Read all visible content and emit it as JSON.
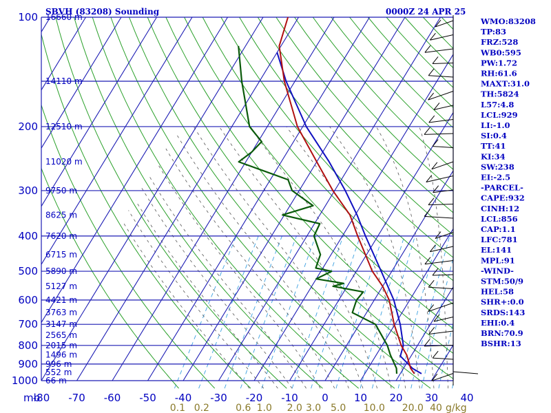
{
  "header": {
    "station": "SBVH (83208) Sounding",
    "time": "0000Z 24 APR 25"
  },
  "colors": {
    "grid": "#1c1cb4",
    "isotherm": "#1c1cb4",
    "dry_adiabat": "#2aa02a",
    "moist_adiabat": "#555555",
    "mixing_ratio": "#3aa0e0",
    "temperature": "#b01010",
    "dewpoint": "#0a5a0a",
    "parcel": "#1010c0",
    "wind": "#000000",
    "text": "#0000c0",
    "mixing_label": "#8a7a2a"
  },
  "indices": [
    "WMO:83208",
    "TP:83",
    "FRZ:528",
    "WB0:595",
    "PW:1.72",
    "RH:61.6",
    "MAXT:31.0",
    "TH:5824",
    "L57:4.8",
    "LCL:929",
    "LI:-1.0",
    "SI:0.4",
    "TT:41",
    "KI:34",
    "SW:238",
    "EI:-2.5",
    "-PARCEL-",
    "CAPE:932",
    "CINH:12",
    "LCL:856",
    "CAP:1.1",
    "LFC:781",
    "EL:141",
    "MPL:91",
    "-WIND-",
    "STM:50/9",
    "HEL:58",
    "SHR+:0.0",
    "SRDS:143",
    "EHI:0.4",
    "BRN:70.9",
    "BSHR:13"
  ],
  "chart_data": {
    "type": "skew-t",
    "title": "SBVH (83208) Sounding",
    "valid_time": "0000Z 24 APR 25",
    "y_axis": {
      "unit": "mb",
      "scale": "log",
      "range": [
        1000,
        100
      ],
      "ticks": [
        100,
        200,
        300,
        400,
        500,
        600,
        700,
        800,
        900,
        1000
      ],
      "minor_lines": [
        150
      ]
    },
    "x_axis": {
      "ticks": [
        -80,
        -70,
        -60,
        -50,
        -40,
        -30,
        -20,
        -10,
        0,
        10,
        20,
        30,
        40
      ],
      "tick_labels": [
        "-80",
        "-70",
        "-60",
        "-50",
        "-40",
        "-30",
        "-20",
        "-10",
        "0",
        "10",
        "20",
        "30",
        "40"
      ],
      "range": [
        -80,
        40
      ]
    },
    "height_labels": [
      {
        "p": 100,
        "label": "16660 m"
      },
      {
        "p": 150,
        "label": "14110 m"
      },
      {
        "p": 200,
        "label": "12510 m"
      },
      {
        "p": 250,
        "label": "11020 m"
      },
      {
        "p": 300,
        "label": "9750 m"
      },
      {
        "p": 350,
        "label": "8625 m"
      },
      {
        "p": 400,
        "label": "7620 m"
      },
      {
        "p": 450,
        "label": "6715 m"
      },
      {
        "p": 500,
        "label": "5890 m"
      },
      {
        "p": 550,
        "label": "5127 m"
      },
      {
        "p": 600,
        "label": "4421 m"
      },
      {
        "p": 650,
        "label": "3763 m"
      },
      {
        "p": 700,
        "label": "3147 m"
      },
      {
        "p": 750,
        "label": "2565 m"
      },
      {
        "p": 800,
        "label": "2015 m"
      },
      {
        "p": 850,
        "label": "1496 m"
      },
      {
        "p": 900,
        "label": "996 m"
      },
      {
        "p": 950,
        "label": "552 m"
      },
      {
        "p": 1000,
        "label": "66 m"
      }
    ],
    "mixing_ratio_labels": [
      {
        "w": 0.1,
        "label": "0.1"
      },
      {
        "w": 0.2,
        "label": "0.2"
      },
      {
        "w": 0.6,
        "label": "0.6"
      },
      {
        "w": 1.0,
        "label": "1.0"
      },
      {
        "w": 2.0,
        "label": "2.0"
      },
      {
        "w": 3.0,
        "label": "3.0"
      },
      {
        "w": 5.0,
        "label": "5.0"
      },
      {
        "w": 10.0,
        "label": "10.0"
      },
      {
        "w": 20.0,
        "label": "20.0"
      },
      {
        "w": 40.0,
        "label": "40"
      }
    ],
    "mixing_ratio_unit": "g/kg",
    "temperature": [
      {
        "p": 957,
        "t": 24.0
      },
      {
        "p": 925,
        "t": 22.0
      },
      {
        "p": 850,
        "t": 18.6
      },
      {
        "p": 800,
        "t": 15.4
      },
      {
        "p": 700,
        "t": 9.8
      },
      {
        "p": 600,
        "t": 4.2
      },
      {
        "p": 550,
        "t": 0.0
      },
      {
        "p": 500,
        "t": -5.5
      },
      {
        "p": 400,
        "t": -15.7
      },
      {
        "p": 350,
        "t": -21.5
      },
      {
        "p": 300,
        "t": -30.5
      },
      {
        "p": 250,
        "t": -40.0
      },
      {
        "p": 200,
        "t": -51.5
      },
      {
        "p": 150,
        "t": -63.0
      },
      {
        "p": 120,
        "t": -70.5
      },
      {
        "p": 100,
        "t": -73.0
      }
    ],
    "dewpoint": [
      {
        "p": 957,
        "t": 19.0
      },
      {
        "p": 925,
        "t": 18.0
      },
      {
        "p": 850,
        "t": 14.0
      },
      {
        "p": 800,
        "t": 11.5
      },
      {
        "p": 700,
        "t": 4.5
      },
      {
        "p": 650,
        "t": -4.0
      },
      {
        "p": 600,
        "t": -5.0
      },
      {
        "p": 570,
        "t": -4.5
      },
      {
        "p": 550,
        "t": -14.0
      },
      {
        "p": 540,
        "t": -11.5
      },
      {
        "p": 525,
        "t": -20.0
      },
      {
        "p": 500,
        "t": -17.0
      },
      {
        "p": 490,
        "t": -22.0
      },
      {
        "p": 450,
        "t": -23.0
      },
      {
        "p": 400,
        "t": -28.0
      },
      {
        "p": 370,
        "t": -28.5
      },
      {
        "p": 350,
        "t": -40.5
      },
      {
        "p": 330,
        "t": -33.5
      },
      {
        "p": 300,
        "t": -42.0
      },
      {
        "p": 280,
        "t": -45.0
      },
      {
        "p": 250,
        "t": -62.0
      },
      {
        "p": 235,
        "t": -60.0
      },
      {
        "p": 220,
        "t": -59.0
      },
      {
        "p": 200,
        "t": -65.0
      },
      {
        "p": 150,
        "t": -75.0
      },
      {
        "p": 120,
        "t": -82.0
      }
    ],
    "parcel": [
      {
        "p": 957,
        "t": 26.0
      },
      {
        "p": 925,
        "t": 22.5
      },
      {
        "p": 856,
        "t": 17.0
      },
      {
        "p": 800,
        "t": 16.0
      },
      {
        "p": 700,
        "t": 11.5
      },
      {
        "p": 600,
        "t": 5.5
      },
      {
        "p": 500,
        "t": -3.0
      },
      {
        "p": 400,
        "t": -13.5
      },
      {
        "p": 350,
        "t": -19.5
      },
      {
        "p": 300,
        "t": -27.0
      },
      {
        "p": 250,
        "t": -36.5
      },
      {
        "p": 200,
        "t": -49.0
      },
      {
        "p": 150,
        "t": -62.5
      },
      {
        "p": 125,
        "t": -70.0
      }
    ]
  }
}
